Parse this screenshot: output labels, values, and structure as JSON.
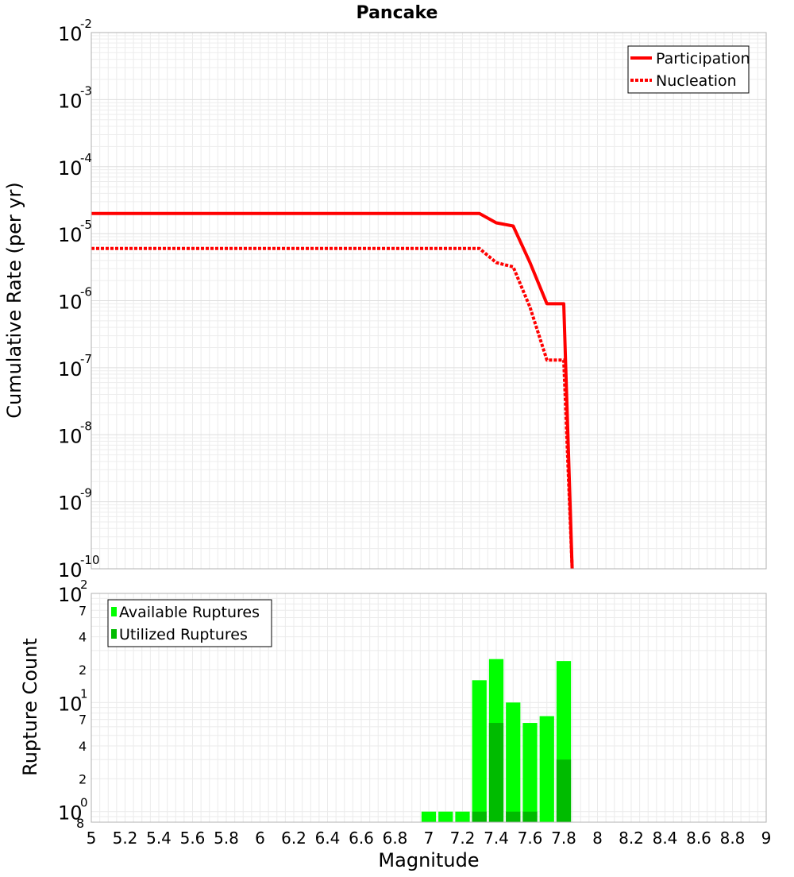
{
  "chart_data": {
    "title": "Pancake",
    "xlabel": "Magnitude",
    "xlim": [
      5,
      9
    ],
    "x_ticks": [
      "5",
      "5.2",
      "5.4",
      "5.6",
      "5.8",
      "6",
      "6.2",
      "6.4",
      "6.6",
      "6.8",
      "7",
      "7.2",
      "7.4",
      "7.6",
      "7.8",
      "8",
      "8.2",
      "8.4",
      "8.6",
      "8.8",
      "9"
    ],
    "top_panel": {
      "type": "line",
      "ylabel": "Cumulative Rate (per yr)",
      "yscale": "log",
      "ylim": [
        1e-10,
        0.01
      ],
      "y_tick_base": "10",
      "y_tick_exponents": [
        "-10",
        "-9",
        "-8",
        "-7",
        "-6",
        "-5",
        "-4",
        "-3",
        "-2"
      ],
      "legend_position": "top-right",
      "series": [
        {
          "name": "Participation",
          "style": "solid",
          "color": "#ff0000",
          "x": [
            5.0,
            7.3,
            7.4,
            7.5,
            7.6,
            7.7,
            7.8,
            7.85
          ],
          "y": [
            2e-05,
            2e-05,
            1.45e-05,
            1.3e-05,
            3.7e-06,
            9e-07,
            9e-07,
            1e-10
          ]
        },
        {
          "name": "Nucleation",
          "style": "dotted",
          "color": "#ff0000",
          "x": [
            5.0,
            7.3,
            7.4,
            7.5,
            7.6,
            7.7,
            7.8,
            7.85
          ],
          "y": [
            6e-06,
            6e-06,
            3.7e-06,
            3.2e-06,
            8e-07,
            1.3e-07,
            1.3e-07,
            1e-10
          ]
        }
      ]
    },
    "bottom_panel": {
      "type": "bar",
      "ylabel": "Rupture Count",
      "yscale": "log",
      "ylim": [
        0.8,
        100
      ],
      "y_major_ticks": [
        {
          "base": "10",
          "exp": "0"
        },
        {
          "base": "10",
          "exp": "1"
        },
        {
          "base": "10",
          "exp": "2"
        }
      ],
      "y_minor_ticks": [
        "8",
        "2",
        "4",
        "7",
        "2",
        "4",
        "7"
      ],
      "legend_position": "top-left",
      "bin_width": 0.1,
      "x": [
        7.0,
        7.1,
        7.2,
        7.3,
        7.4,
        7.5,
        7.6,
        7.7,
        7.8
      ],
      "series": [
        {
          "name": "Available Ruptures",
          "color": "#00ff00",
          "values": [
            1,
            1,
            1,
            16,
            25,
            10,
            6.5,
            7.5,
            24
          ]
        },
        {
          "name": "Utilized Ruptures",
          "color": "#00bb00",
          "values": [
            0,
            0,
            0,
            1,
            6.5,
            1,
            1,
            0,
            3
          ]
        }
      ]
    }
  }
}
